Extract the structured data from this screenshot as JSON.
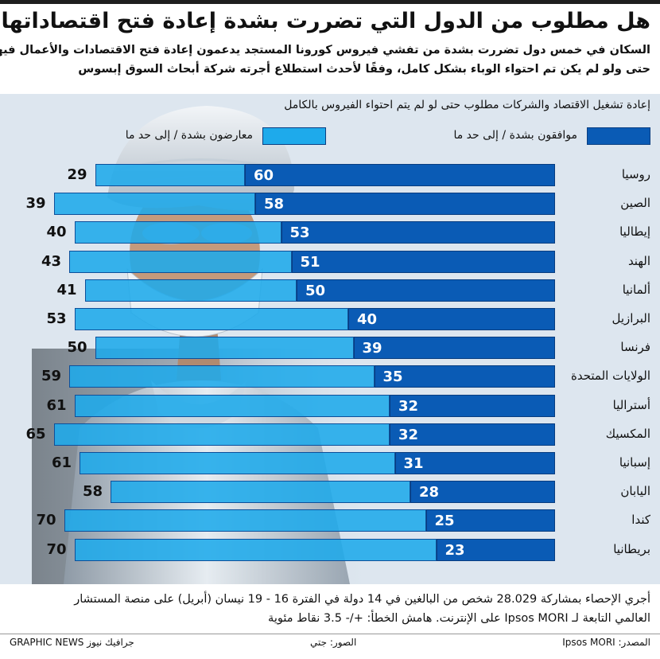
{
  "title": "هل مطلوب من الدول التي تضررت بشدة إعادة فتح اقتصاداتها؟",
  "subtitle_lines": [
    "السكان في خمس دول تضررت بشدة من تفشي فيروس كورونا المستجد يدعمون إعادة فتح الاقتصادات والأعمال فيها",
    "حتى ولو لم يكن تم احتواء الوباء بشكل كامل، وفقًا لأحدث استطلاع أجرته شركة أبحاث السوق إبسوس"
  ],
  "colors": {
    "agree": "#0a5bb5",
    "oppose": "#1eaaeb",
    "panel_background": "#dde6ef"
  },
  "chart_data": {
    "type": "bar",
    "orientation": "horizontal",
    "stacked": true,
    "title": "إعادة تشغيل الاقتصاد والشركات مطلوب حتى لو لم يتم احتواء الفيروس بالكامل",
    "legend_position": "top",
    "categories": [
      "روسيا",
      "الصين",
      "إيطاليا",
      "الهند",
      "ألمانيا",
      "البرازيل",
      "فرنسا",
      "الولايات المتحدة",
      "أستراليا",
      "المكسيك",
      "إسبانيا",
      "اليابان",
      "كندا",
      "بريطانيا"
    ],
    "series": [
      {
        "name": "موافقون بشدة / إلى حد ما",
        "values": [
          60,
          58,
          53,
          51,
          50,
          40,
          39,
          35,
          32,
          32,
          31,
          28,
          25,
          23
        ]
      },
      {
        "name": "معارضون بشدة / إلى حد ما",
        "values": [
          29,
          39,
          40,
          43,
          41,
          53,
          50,
          59,
          61,
          65,
          61,
          58,
          70,
          70
        ]
      }
    ],
    "xlim": [
      0,
      100
    ]
  },
  "footnote_lines": [
    "أجري الإحصاء بمشاركة 28.029 شخص من البالغين في 14 دولة في الفترة 16 - 19 نيسان (أبريل) على منصة المستشار",
    "العالمي التابعة لـ Ipsos MORI على الإنترنت. هامش الخطأ: +/- 3.5 نقاط مئوية"
  ],
  "footer": {
    "source": "المصدر: Ipsos MORI",
    "photos": "الصور: جتي",
    "brand": "GRAPHIC NEWS جرافيك نيوز"
  }
}
